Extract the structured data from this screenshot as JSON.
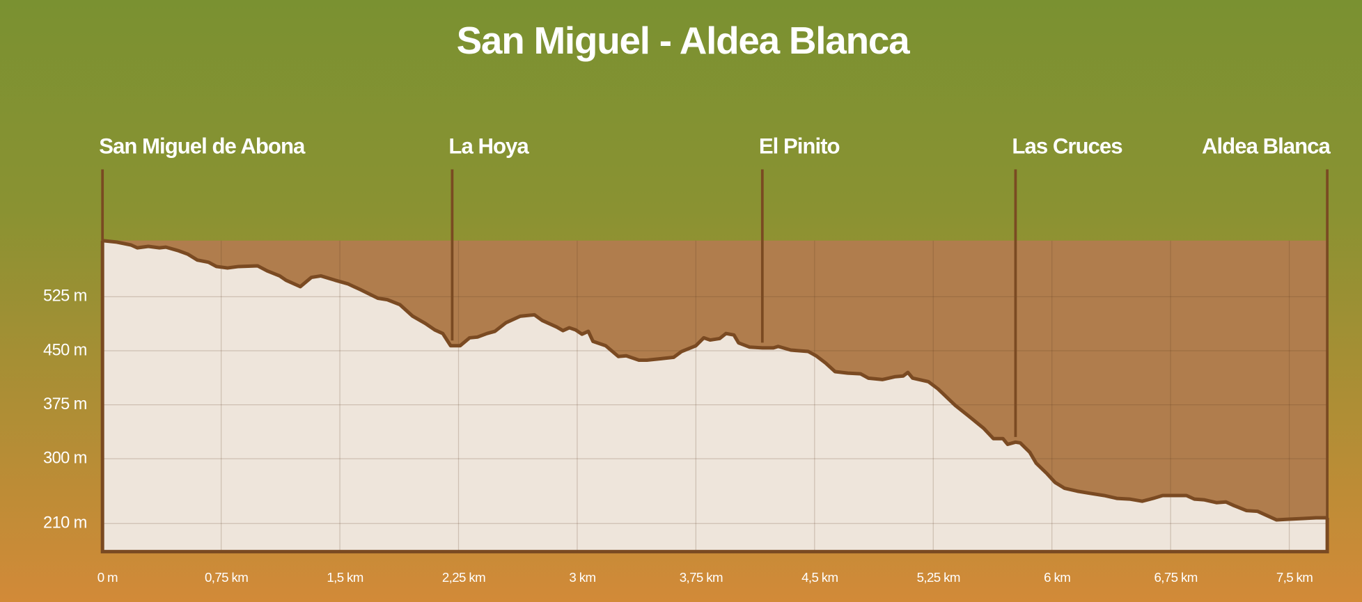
{
  "chart_data": {
    "type": "area",
    "title": "San Miguel - Aldea Blanca",
    "x": [
      0,
      0.09,
      0.18,
      0.22,
      0.29,
      0.36,
      0.4,
      0.48,
      0.54,
      0.6,
      0.67,
      0.72,
      0.79,
      0.86,
      0.98,
      1.04,
      1.12,
      1.16,
      1.25,
      1.32,
      1.38,
      1.47,
      1.55,
      1.63,
      1.74,
      1.8,
      1.88,
      1.96,
      2.04,
      2.1,
      2.15,
      2.2,
      2.26,
      2.32,
      2.37,
      2.43,
      2.48,
      2.55,
      2.64,
      2.73,
      2.78,
      2.87,
      2.91,
      2.95,
      2.99,
      3.03,
      3.07,
      3.1,
      3.18,
      3.26,
      3.31,
      3.39,
      3.44,
      3.53,
      3.61,
      3.66,
      3.75,
      3.8,
      3.84,
      3.9,
      3.94,
      3.99,
      4.02,
      4.09,
      4.17,
      4.24,
      4.27,
      4.35,
      4.46,
      4.51,
      4.57,
      4.63,
      4.71,
      4.79,
      4.84,
      4.93,
      5.01,
      5.06,
      5.09,
      5.12,
      5.22,
      5.28,
      5.39,
      5.47,
      5.57,
      5.63,
      5.69,
      5.72,
      5.77,
      5.8,
      5.86,
      5.9,
      5.97,
      6.02,
      6.08,
      6.16,
      6.24,
      6.33,
      6.41,
      6.49,
      6.57,
      6.64,
      6.7,
      6.85,
      6.9,
      6.96,
      7.04,
      7.1,
      7.15,
      7.23,
      7.3,
      7.37,
      7.42,
      7.5,
      7.59,
      7.67,
      7.74
    ],
    "values": [
      603,
      601,
      597,
      593,
      595,
      593,
      594,
      589,
      584,
      576,
      573,
      567,
      565,
      567,
      568,
      561,
      554,
      548,
      539,
      552,
      554,
      548,
      543,
      535,
      523,
      521,
      514,
      498,
      488,
      479,
      474,
      457,
      457,
      468,
      469,
      474,
      477,
      489,
      498,
      500,
      492,
      483,
      478,
      482,
      479,
      473,
      477,
      463,
      457,
      442,
      443,
      437,
      437,
      439,
      441,
      449,
      457,
      468,
      465,
      467,
      474,
      472,
      461,
      455,
      454,
      454,
      456,
      451,
      449,
      443,
      433,
      421,
      419,
      418,
      412,
      410,
      414,
      415,
      420,
      412,
      407,
      397,
      374,
      360,
      342,
      328,
      328,
      320,
      323,
      322,
      309,
      294,
      279,
      267,
      259,
      255,
      252,
      249,
      245,
      244,
      241,
      245,
      249,
      249,
      244,
      243,
      239,
      240,
      235,
      228,
      227,
      220,
      215,
      216,
      217,
      218,
      218
    ],
    "color": "#7a4a22",
    "fill_color": "#eee5db",
    "plot_background": "#b07d4d",
    "xlim": [
      0,
      7.74
    ],
    "ylim": [
      171,
      603
    ],
    "xticks": [
      {
        "value": 0,
        "label": "0 m"
      },
      {
        "value": 0.75,
        "label": "0,75 km"
      },
      {
        "value": 1.5,
        "label": "1,5 km"
      },
      {
        "value": 2.25,
        "label": "2,25 km"
      },
      {
        "value": 3,
        "label": "3 km"
      },
      {
        "value": 3.75,
        "label": "3,75 km"
      },
      {
        "value": 4.5,
        "label": "4,5 km"
      },
      {
        "value": 5.25,
        "label": "5,25 km"
      },
      {
        "value": 6,
        "label": "6 km"
      },
      {
        "value": 6.75,
        "label": "6,75 km"
      },
      {
        "value": 7.5,
        "label": "7,5 km"
      }
    ],
    "yticks": [
      {
        "value": 210,
        "label": "210 m"
      },
      {
        "value": 300,
        "label": "300 m"
      },
      {
        "value": 375,
        "label": "375 m"
      },
      {
        "value": 450,
        "label": "450 m"
      },
      {
        "value": 525,
        "label": "525 m"
      }
    ],
    "grid": true,
    "waypoints": [
      {
        "label": "San Miguel de Abona",
        "x": 0
      },
      {
        "label": "La Hoya",
        "x": 2.21
      },
      {
        "label": "El Pinito",
        "x": 4.17
      },
      {
        "label": "Las Cruces",
        "x": 5.77
      },
      {
        "label": "Aldea Blanca",
        "x": 7.74
      }
    ]
  }
}
